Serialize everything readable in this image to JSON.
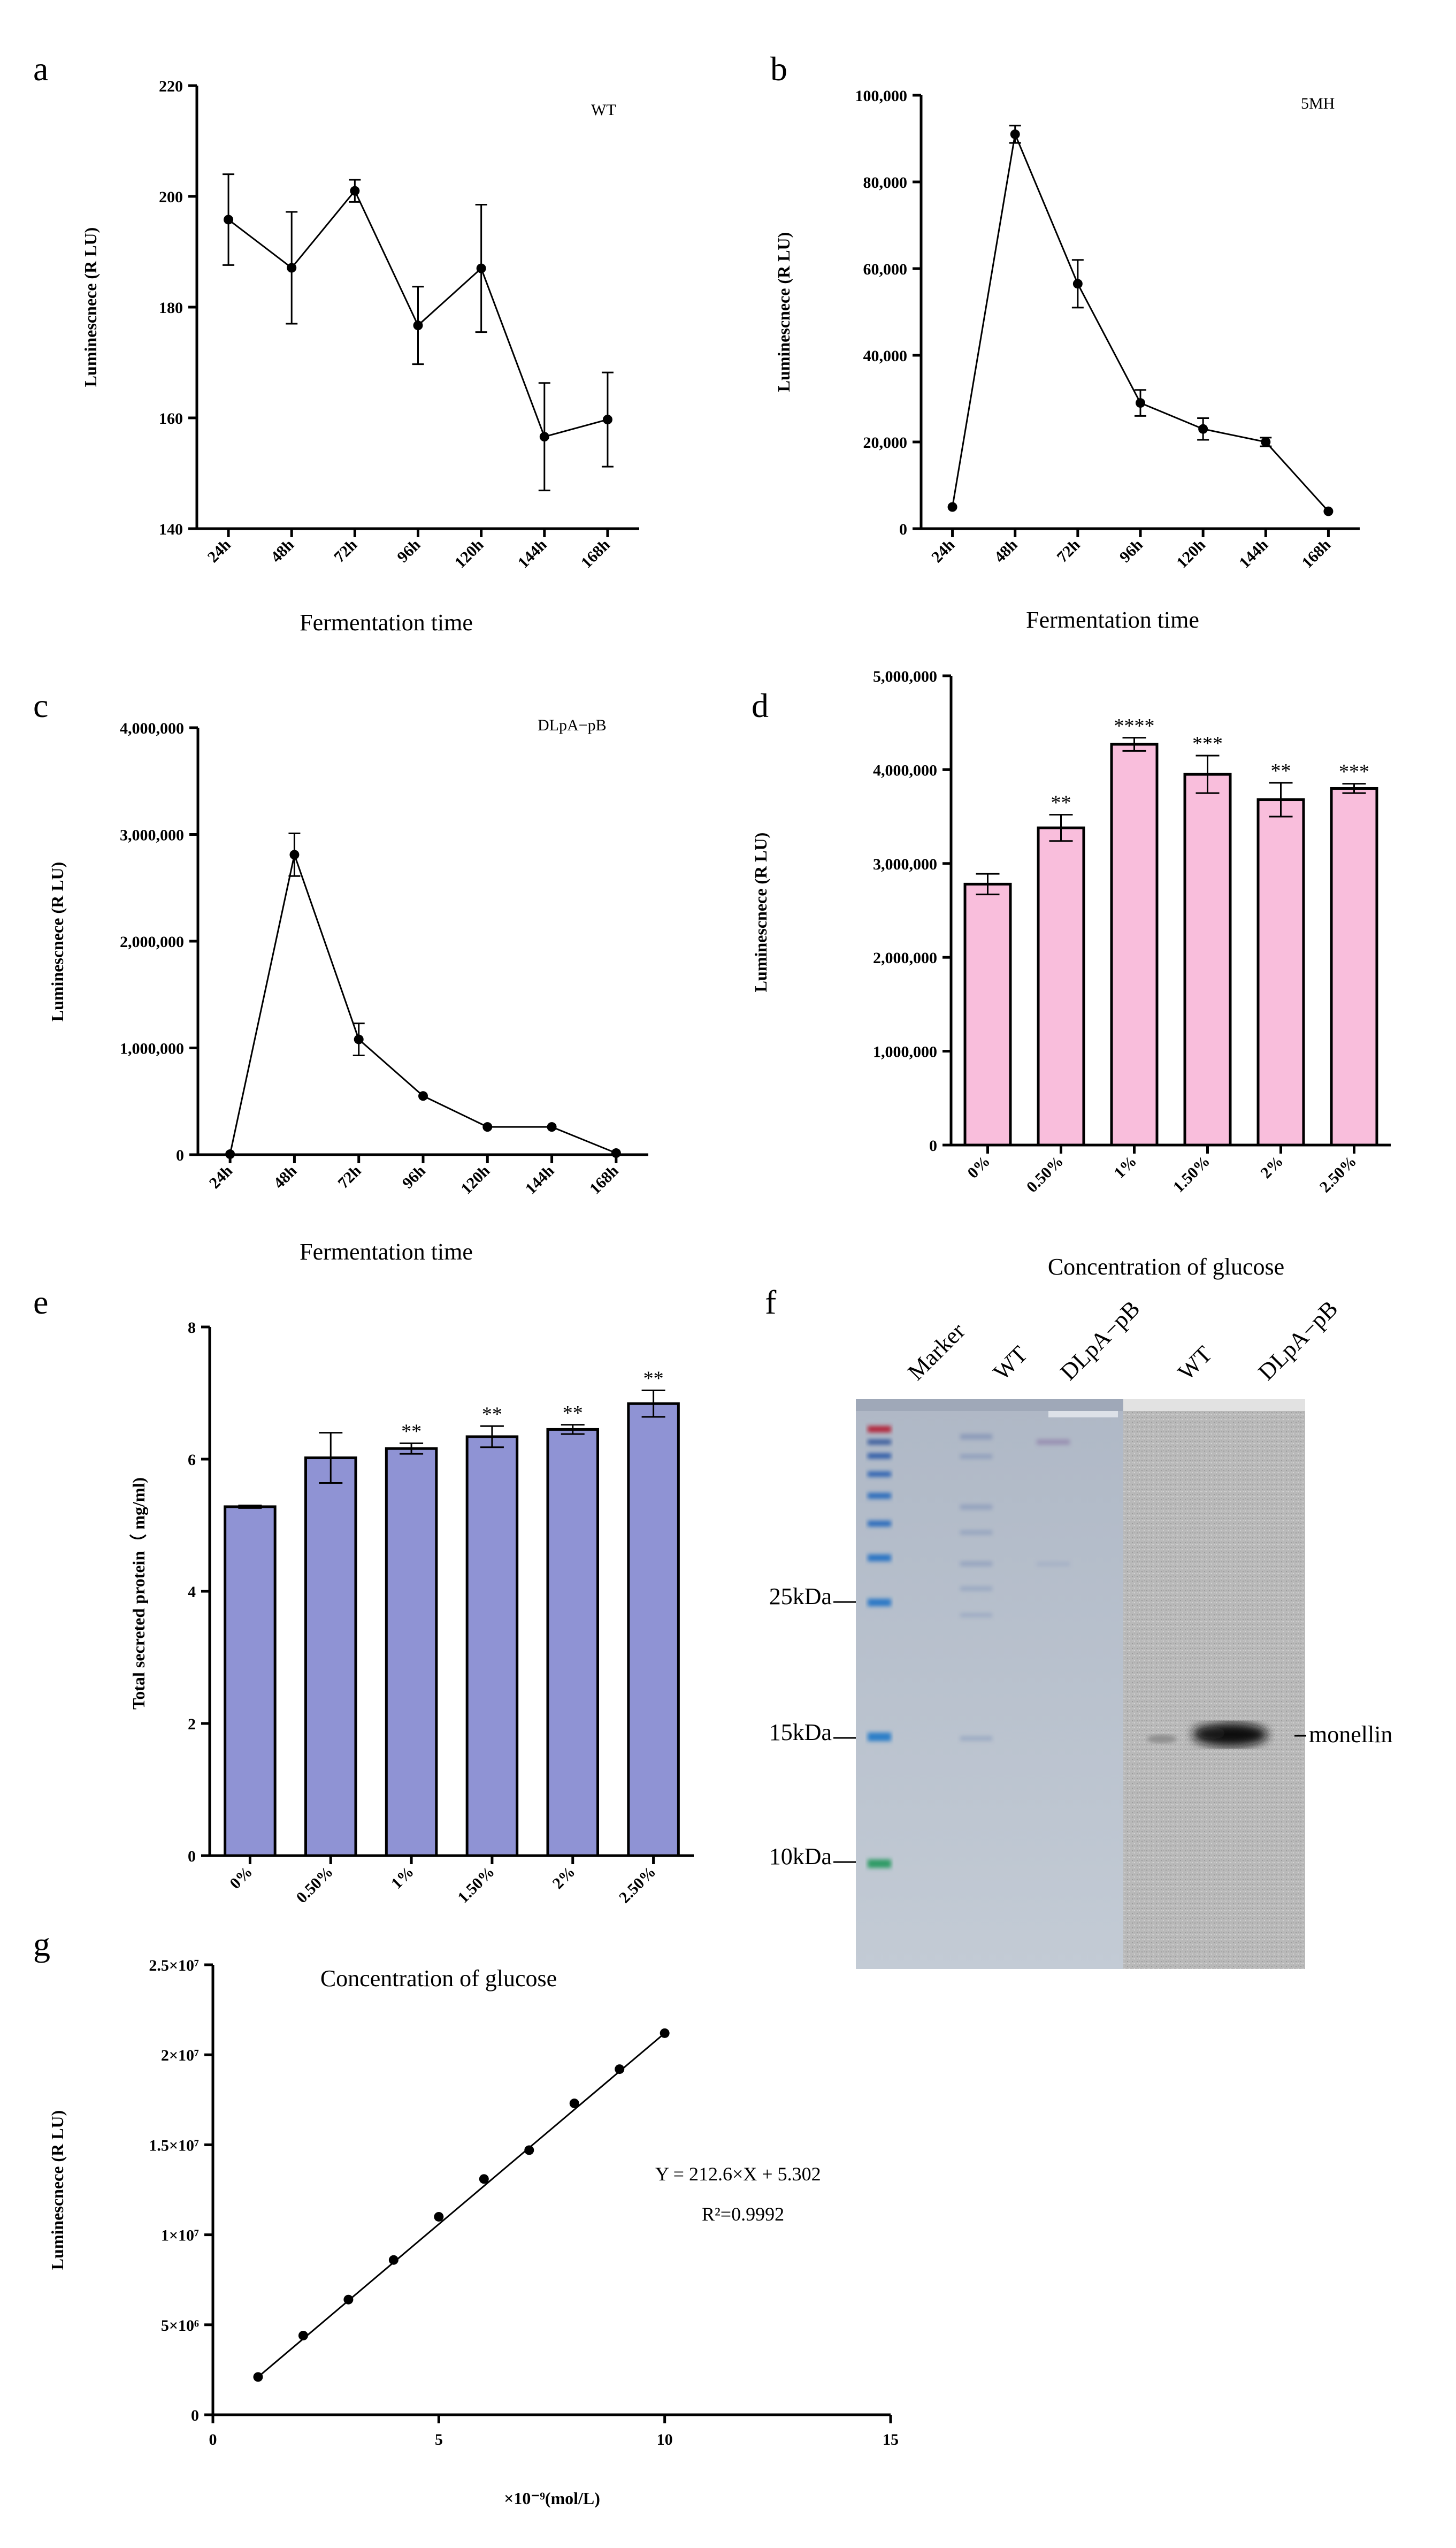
{
  "chart_data": [
    {
      "id": "a",
      "letter": "a",
      "type": "line",
      "tag": "WT",
      "categories": [
        "24h",
        "48h",
        "72h",
        "96h",
        "120h",
        "144h",
        "168h"
      ],
      "values": [
        195.8,
        187.1,
        201.0,
        176.7,
        187.0,
        156.6,
        159.7
      ],
      "errors": [
        8.2,
        10.1,
        2.0,
        7.0,
        11.5,
        9.7,
        8.5
      ],
      "ylim": [
        140,
        220
      ],
      "yticks": [
        140,
        160,
        180,
        200,
        220
      ],
      "ytick_labels": [
        "140",
        "160",
        "180",
        "200",
        "220"
      ],
      "ylabel": "Luminescnece (R LU)",
      "xlabel": "Fermentation time"
    },
    {
      "id": "b",
      "letter": "b",
      "type": "line",
      "tag": "5MH",
      "categories": [
        "24h",
        "48h",
        "72h",
        "96h",
        "120h",
        "144h",
        "168h"
      ],
      "values": [
        5000,
        91000,
        56500,
        29000,
        23000,
        20000,
        4000
      ],
      "errors": [
        0,
        2000,
        5500,
        3000,
        2500,
        1000,
        0
      ],
      "ylim": [
        0,
        100000
      ],
      "yticks": [
        0,
        20000,
        40000,
        60000,
        80000,
        100000
      ],
      "ytick_labels": [
        "0",
        "20,000",
        "40,000",
        "60,000",
        "80,000",
        "100,000"
      ],
      "ylabel": "Luminescnece (R LU)",
      "xlabel": "Fermentation time"
    },
    {
      "id": "c",
      "letter": "c",
      "type": "line",
      "tag": "DLpA−pB",
      "categories": [
        "24h",
        "48h",
        "72h",
        "96h",
        "120h",
        "144h",
        "168h"
      ],
      "values": [
        5000,
        2810000,
        1080000,
        550000,
        260000,
        260000,
        15000
      ],
      "errors": [
        0,
        200000,
        150000,
        0,
        0,
        0,
        0
      ],
      "ylim": [
        0,
        4000000
      ],
      "yticks": [
        0,
        1000000,
        2000000,
        3000000,
        4000000
      ],
      "ytick_labels": [
        "0",
        "1,000,000",
        "2,000,000",
        "3,000,000",
        "4,000,000"
      ],
      "ylabel": "Luminescnece (R LU)",
      "xlabel": "Fermentation time"
    },
    {
      "id": "d",
      "letter": "d",
      "type": "bar",
      "color": "#F9BEDC",
      "categories": [
        "0%",
        "0.50%",
        "1%",
        "1.50%",
        "2%",
        "2.50%"
      ],
      "values": [
        2780000,
        3380000,
        4270000,
        3950000,
        3680000,
        3800000
      ],
      "errors": [
        110000,
        140000,
        70000,
        200000,
        180000,
        50000
      ],
      "significance": [
        "",
        "**",
        "****",
        "***",
        "**",
        "***"
      ],
      "ylim": [
        0,
        5000000
      ],
      "yticks": [
        0,
        1000000,
        2000000,
        3000000,
        4000000,
        5000000
      ],
      "ytick_labels": [
        "0",
        "1,000,000",
        "2,000,000",
        "3,000,000",
        "4,000,000",
        "5,000,000"
      ],
      "ylabel": "Luminescnece (R LU)",
      "xlabel": "Concentration of glucose"
    },
    {
      "id": "e",
      "letter": "e",
      "type": "bar",
      "color": "#8F93D4",
      "categories": [
        "0%",
        "0.50%",
        "1%",
        "1.50%",
        "2%",
        "2.50%"
      ],
      "values": [
        5.28,
        6.02,
        6.16,
        6.34,
        6.45,
        6.84
      ],
      "errors": [
        0.02,
        0.38,
        0.08,
        0.16,
        0.07,
        0.2
      ],
      "significance": [
        "",
        "",
        "**",
        "**",
        "**",
        "**"
      ],
      "ylim": [
        0,
        8
      ],
      "yticks": [
        0,
        2,
        4,
        6,
        8
      ],
      "ytick_labels": [
        "0",
        "2",
        "4",
        "6",
        "8"
      ],
      "ylabel": "Total secreted protein（ mg/ml)",
      "xlabel": "Concentration of glucose"
    },
    {
      "id": "g",
      "letter": "g",
      "type": "scatter",
      "x": [
        1,
        2,
        3,
        4,
        5,
        6,
        7,
        8,
        9,
        10
      ],
      "y": [
        2100000,
        4400000,
        6400000,
        8600000,
        11000000,
        13100000,
        14700000,
        17300000,
        19200000,
        21200000
      ],
      "fit": [
        [
          1,
          2100000
        ],
        [
          10,
          21200000
        ]
      ],
      "xlim": [
        0,
        15
      ],
      "ylim": [
        0,
        25000000
      ],
      "xticks": [
        0,
        5,
        10,
        15
      ],
      "xtick_labels": [
        "0",
        "5",
        "10",
        "15"
      ],
      "yticks": [
        0,
        5000000,
        10000000,
        15000000,
        20000000,
        25000000
      ],
      "ytick_labels": [
        "0",
        "5×10⁶",
        "1×10⁷",
        "1.5×10⁷",
        "2×10⁷",
        "2.5×10⁷"
      ],
      "ylabel": "Luminescnece (R LU)",
      "xlabel": "×10⁻⁹(mol/L)",
      "equation": "Y = 212.6×X + 5.302",
      "r2": "R²=0.9992"
    }
  ],
  "gel": {
    "letter": "f",
    "lane_labels": [
      "Marker",
      "WT",
      "DLpA−pB",
      "WT",
      "DLpA−pB"
    ],
    "marker_labels": [
      "25kDa",
      "15kDa",
      "10kDa"
    ],
    "band_label": "monellin"
  }
}
